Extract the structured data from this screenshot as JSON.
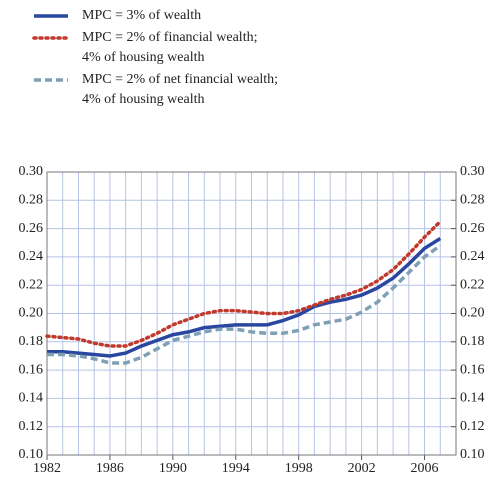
{
  "chart_data": {
    "type": "line",
    "x": [
      1982,
      1983,
      1984,
      1985,
      1986,
      1987,
      1988,
      1989,
      1990,
      1991,
      1992,
      1993,
      1994,
      1995,
      1996,
      1997,
      1998,
      1999,
      2000,
      2001,
      2002,
      2003,
      2004,
      2005,
      2006,
      2007
    ],
    "series": [
      {
        "name": "MPC = 3% of wealth",
        "color": "#2a47a0",
        "style": "solid",
        "values": [
          0.173,
          0.173,
          0.172,
          0.171,
          0.17,
          0.172,
          0.177,
          0.181,
          0.185,
          0.187,
          0.19,
          0.191,
          0.192,
          0.192,
          0.192,
          0.195,
          0.199,
          0.205,
          0.208,
          0.21,
          0.213,
          0.218,
          0.225,
          0.235,
          0.246,
          0.253
        ]
      },
      {
        "name": "MPC = 2% of financial wealth;\n4% of housing wealth",
        "color": "#c0392b",
        "style": "dotted",
        "values": [
          0.184,
          0.183,
          0.182,
          0.179,
          0.177,
          0.177,
          0.181,
          0.186,
          0.192,
          0.196,
          0.2,
          0.202,
          0.202,
          0.201,
          0.2,
          0.2,
          0.202,
          0.206,
          0.21,
          0.213,
          0.217,
          0.223,
          0.231,
          0.242,
          0.254,
          0.265
        ]
      },
      {
        "name": "MPC = 2% of net financial wealth;\n4% of housing wealth",
        "color": "#7f9fb5",
        "style": "dashed",
        "values": [
          0.171,
          0.171,
          0.17,
          0.168,
          0.165,
          0.165,
          0.169,
          0.175,
          0.181,
          0.184,
          0.187,
          0.189,
          0.189,
          0.187,
          0.186,
          0.186,
          0.188,
          0.192,
          0.194,
          0.196,
          0.201,
          0.208,
          0.218,
          0.229,
          0.24,
          0.248
        ]
      }
    ],
    "xlim": [
      1982,
      2008
    ],
    "xticks": [
      1982,
      1986,
      1990,
      1994,
      1998,
      2002,
      2006
    ],
    "ylim": [
      0.1,
      0.3
    ],
    "yticks": [
      {
        "value": 0.1,
        "label": "0.10"
      },
      0.12,
      0.14,
      0.16,
      0.18,
      {
        "value": 0.2,
        "label": "0.20"
      },
      0.22,
      0.24,
      0.26,
      0.28,
      {
        "value": 0.3,
        "label": "0.30"
      }
    ],
    "y2lim": [
      0.1,
      0.3
    ],
    "y2ticks": [
      {
        "value": 0.1,
        "label": "0.10"
      },
      0.12,
      0.14,
      0.16,
      0.18,
      {
        "value": 0.2,
        "label": "0.20"
      },
      0.22,
      0.24,
      0.26,
      0.28,
      {
        "value": 0.3,
        "label": "0.30"
      }
    ],
    "grid": true,
    "legend": "top"
  }
}
